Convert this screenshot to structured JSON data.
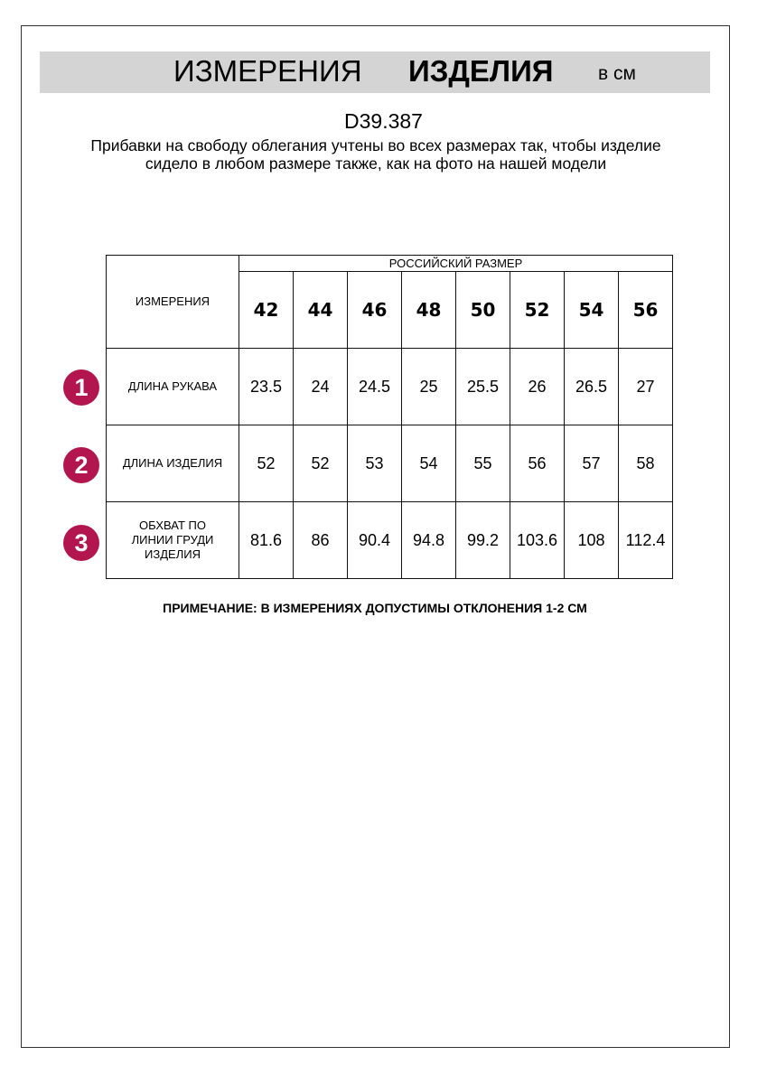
{
  "header": {
    "title_regular": "ИЗМЕРЕНИЯ",
    "title_bold": "ИЗДЕЛИЯ",
    "unit": "в см"
  },
  "product_code": "D39.387",
  "description": "Прибавки на свободу облегания учтены во всех размерах так, чтобы изделие сидело в любом размере также, как на фото на нашей модели",
  "table": {
    "corner_label": "ИЗМЕРЕНИЯ",
    "group_header": "РОССИЙСКИЙ РАЗМЕР",
    "sizes": [
      "42",
      "44",
      "46",
      "48",
      "50",
      "52",
      "54",
      "56"
    ],
    "rows": [
      {
        "num": "1",
        "label": "ДЛИНА РУКАВА",
        "values": [
          "23.5",
          "24",
          "24.5",
          "25",
          "25.5",
          "26",
          "26.5",
          "27"
        ]
      },
      {
        "num": "2",
        "label": "ДЛИНА ИЗДЕЛИЯ",
        "values": [
          "52",
          "52",
          "53",
          "54",
          "55",
          "56",
          "57",
          "58"
        ]
      },
      {
        "num": "3",
        "label": "ОБХВАТ ПО ЛИНИИ ГРУДИ ИЗДЕЛИЯ",
        "values": [
          "81.6",
          "86",
          "90.4",
          "94.8",
          "99.2",
          "103.6",
          "108",
          "112.4"
        ]
      }
    ]
  },
  "note": "ПРИМЕЧАНИЕ: В ИЗМЕРЕНИЯХ ДОПУСТИМЫ ОТКЛОНЕНИЯ 1-2 СМ",
  "colors": {
    "badge": "#b3164f",
    "banner": "#d4d4d4"
  }
}
